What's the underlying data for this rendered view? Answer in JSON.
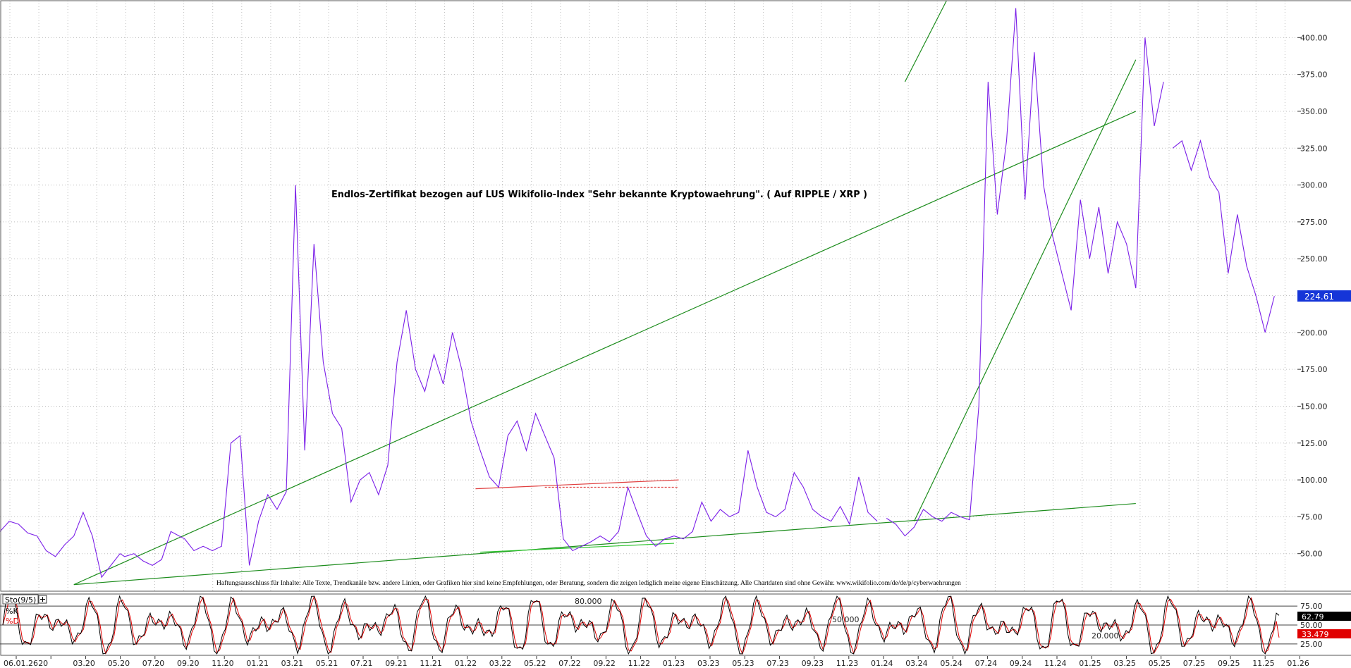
{
  "chart_data": [
    {
      "type": "line",
      "panel": "price",
      "title": "Endlos-Zertifikat bezogen auf LUS Wikifolio-Index \"Sehr bekannte Kryptowaehrung\". ( Auf RIPPLE / XRP )",
      "disclaimer": "Haftungsausschluss für Inhalte: Alle Texte, Trendkanäle bzw. andere Linien, oder Grafiken hier sind keine Empfehlungen, oder Beratung, sondern die zeigen lediglich meine eigene Einschätzung. Alle Chartdaten sind ohne Gewähr. www.wikifolio.com/de/de/p/cyberwaehrungen",
      "ylim": [
        25,
        425
      ],
      "ytick_labels": [
        "50.00",
        "75.00",
        "100.00",
        "125.00",
        "150.00",
        "175.00",
        "200.00",
        "225.00",
        "250.00",
        "275.00",
        "300.00",
        "325.00",
        "350.00",
        "375.00",
        "400.00"
      ],
      "grid": true,
      "last_value_label": "224.61",
      "last_value": 224.61,
      "series": [
        {
          "color": "#7b1fe8",
          "x": [
            0,
            2,
            4,
            6,
            8,
            10,
            12,
            14,
            16,
            18,
            20,
            22,
            24,
            26,
            27,
            29,
            31,
            33,
            35,
            37,
            40,
            42,
            44,
            46,
            48,
            50,
            52,
            54,
            56,
            58,
            60,
            62,
            64,
            66,
            68,
            70,
            72,
            74,
            76,
            78,
            80,
            82,
            84,
            86,
            88,
            90,
            92,
            94,
            96,
            98,
            100,
            102,
            104,
            106,
            108,
            110,
            112,
            114,
            116,
            118,
            120,
            122,
            124,
            126,
            128,
            130,
            132,
            134,
            136,
            138,
            140,
            142,
            144,
            146,
            148,
            150,
            152,
            154,
            156,
            158,
            160,
            162,
            164,
            166,
            168,
            170,
            172,
            174,
            176,
            178,
            180,
            182,
            184,
            186,
            188,
            190
          ],
          "values": [
            65,
            72,
            70,
            64,
            62,
            52,
            48,
            56,
            62,
            78,
            62,
            34,
            42,
            50,
            48,
            50,
            45,
            42,
            46,
            65,
            60,
            52,
            55,
            52,
            55,
            125,
            130,
            42,
            72,
            90,
            80,
            92,
            300,
            120,
            260,
            180,
            145,
            135,
            85,
            100,
            105,
            90,
            110,
            180,
            215,
            175,
            160,
            185,
            165,
            200,
            175,
            140,
            120,
            102,
            95,
            130,
            140,
            120,
            145,
            130,
            115,
            60,
            52,
            55,
            58,
            62,
            58,
            65,
            95,
            78,
            62,
            55,
            60,
            62,
            60,
            65,
            85,
            72,
            80,
            75,
            78,
            120,
            95,
            78,
            75,
            80,
            105,
            95,
            80,
            75,
            72,
            82,
            70,
            102,
            78,
            72
          ]
        },
        {
          "color": "#7b1fe8",
          "x": [
            192,
            194,
            196,
            198,
            200,
            202,
            204,
            206,
            208,
            210,
            212,
            214,
            216,
            218,
            220,
            222,
            224,
            226,
            228,
            230,
            232,
            234,
            236,
            238,
            240,
            242,
            244,
            246,
            248,
            250,
            252
          ],
          "values": [
            74,
            70,
            62,
            68,
            80,
            75,
            72,
            78,
            75,
            73,
            150,
            370,
            280,
            330,
            420,
            290,
            390,
            300,
            265,
            240,
            215,
            290,
            250,
            285,
            240,
            275,
            260,
            230,
            400,
            340,
            370
          ]
        },
        {
          "color": "#7b1fe8",
          "x": [
            254,
            256,
            258,
            260,
            262,
            264,
            266,
            268,
            270,
            272,
            274,
            276
          ],
          "values": [
            325,
            330,
            310,
            330,
            305,
            295,
            240,
            280,
            245,
            225,
            200,
            224.61
          ]
        }
      ],
      "trendlines": [
        {
          "color": "#1c8c1c",
          "x": [
            16,
            246
          ],
          "values": [
            29,
            350
          ]
        },
        {
          "color": "#1c8c1c",
          "x": [
            16,
            246
          ],
          "values": [
            29,
            84
          ]
        },
        {
          "color": "#1c8c1c",
          "x": [
            198,
            246
          ],
          "values": [
            72,
            385
          ]
        },
        {
          "color": "#1c8c1c",
          "x": [
            196,
            205
          ],
          "values": [
            370,
            425
          ]
        },
        {
          "color": "#e04040",
          "x": [
            103,
            147
          ],
          "values": [
            94,
            100
          ]
        },
        {
          "color": "#e04040",
          "x": [
            118,
            147
          ],
          "values": [
            95,
            95
          ],
          "dashed": true
        },
        {
          "color": "#2ec42e",
          "x": [
            104,
            146
          ],
          "values": [
            51,
            57
          ]
        }
      ]
    },
    {
      "type": "line",
      "panel": "stochastic",
      "indicator_label": "Sto(9/5)",
      "ylim": [
        10,
        90
      ],
      "ytick_labels": [
        "25.00",
        "50.00",
        "75.00"
      ],
      "inline_labels": [
        "80.000",
        "50.000",
        "20.000"
      ],
      "series": [
        {
          "name": "%K",
          "color": "#000000",
          "last_value": 62.79,
          "last_value_label": "62.79"
        },
        {
          "name": "%D",
          "color": "#e00000",
          "last_value": 33.479,
          "last_value_label": "33.479"
        }
      ],
      "x_tick_labels": [
        "06.01.26",
        "20",
        "03.20",
        "05.20",
        "07.20",
        "09.20",
        "11.20",
        "01.21",
        "03.21",
        "05.21",
        "07.21",
        "09.21",
        "11.21",
        "01.22",
        "03.22",
        "05.22",
        "07.22",
        "09.22",
        "11.22",
        "01.23",
        "03.23",
        "05.23",
        "07.23",
        "09.23",
        "11.23",
        "01.24",
        "03.24",
        "05.24",
        "07.24",
        "09.24",
        "11.24",
        "01.25",
        "03.25",
        "05.25",
        "07.25",
        "09.25",
        "11.25",
        "01.26"
      ]
    }
  ]
}
